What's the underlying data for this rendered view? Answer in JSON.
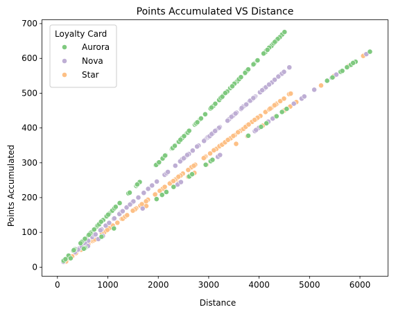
{
  "chart_data": {
    "type": "scatter",
    "title": "Points Accumulated VS Distance",
    "xlabel": "Distance",
    "ylabel": "Points Accumulated",
    "xlim": [
      -300,
      6550
    ],
    "ylim": [
      -25,
      710
    ],
    "xticks": [
      0,
      1000,
      2000,
      3000,
      4000,
      5000,
      6000
    ],
    "yticks": [
      0,
      100,
      200,
      300,
      400,
      500,
      600,
      700
    ],
    "legend": {
      "title": "Loyalty Card",
      "placement": "top-left"
    },
    "series": [
      {
        "name": "Aurora",
        "color": "#7fc97f",
        "trends": [
          {
            "slope": 0.15,
            "x_range": [
              100,
              4520
            ]
          },
          {
            "slope": 0.1,
            "x_range": [
              150,
              6300
            ]
          }
        ]
      },
      {
        "name": "Nova",
        "color": "#beaed4",
        "trends": [
          {
            "slope": 0.125,
            "x_range": [
              100,
              4620
            ]
          },
          {
            "slope": 0.1,
            "x_range": [
              150,
              6250
            ]
          }
        ]
      },
      {
        "name": "Star",
        "color": "#fdc086",
        "trends": [
          {
            "slope": 0.108,
            "x_range": [
              200,
              4650
            ]
          },
          {
            "slope": 0.1,
            "x_range": [
              150,
              6300
            ]
          }
        ]
      }
    ]
  }
}
